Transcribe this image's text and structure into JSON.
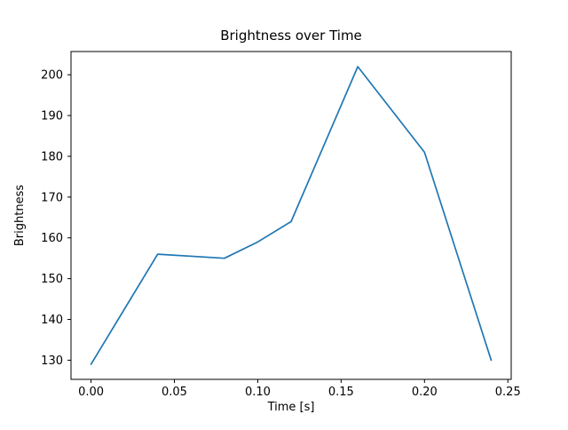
{
  "figure": {
    "background": "#ffffff",
    "line_color": "#1f77b4",
    "axis_color": "#000000"
  },
  "chart_data": {
    "type": "line",
    "title": "Brightness over Time",
    "xlabel": "Time [s]",
    "ylabel": "Brightness",
    "x": [
      0.0,
      0.04,
      0.08,
      0.1,
      0.12,
      0.16,
      0.2,
      0.24
    ],
    "y": [
      129,
      156,
      155,
      159,
      164,
      202,
      181,
      130
    ],
    "xticks": [
      0.0,
      0.05,
      0.1,
      0.15,
      0.2,
      0.25
    ],
    "yticks": [
      130,
      140,
      150,
      160,
      170,
      180,
      190,
      200
    ],
    "xlim": [
      -0.012,
      0.252
    ],
    "ylim": [
      125.3,
      205.7
    ],
    "grid": false,
    "legend": null
  }
}
